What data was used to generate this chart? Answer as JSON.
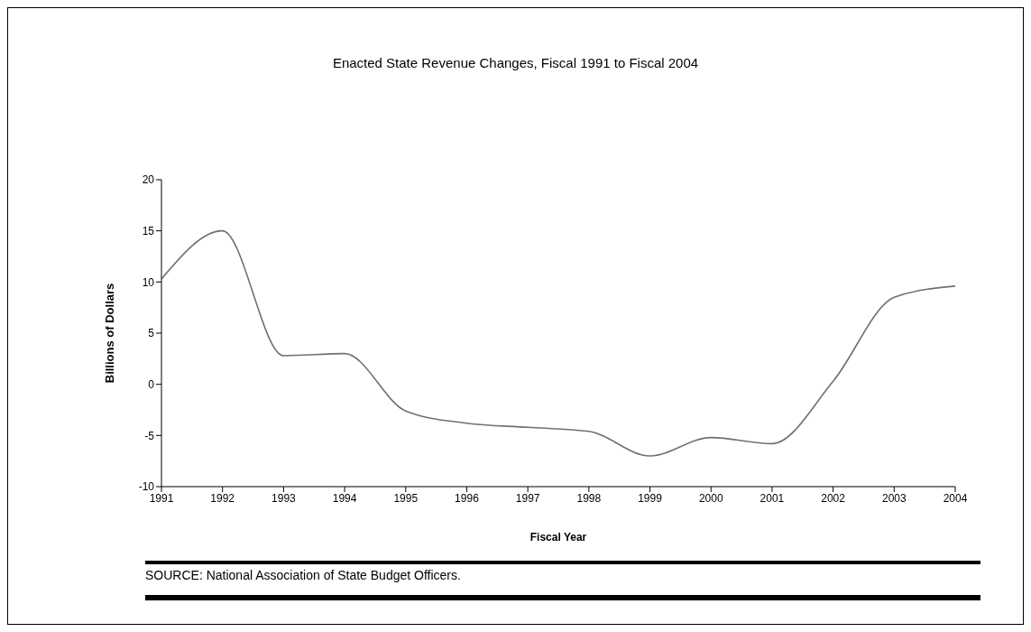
{
  "chart_data": {
    "type": "line",
    "title": "Enacted State Revenue Changes, Fiscal 1991 to Fiscal 2004",
    "xlabel": "Fiscal Year",
    "ylabel": "Billions of Dollars",
    "x": [
      1991,
      1992,
      1993,
      1994,
      1995,
      1996,
      1997,
      1998,
      1999,
      2000,
      2001,
      2002,
      2003,
      2004
    ],
    "series": [
      {
        "color": "#707070",
        "values": [
          10.3,
          15,
          2.8,
          3,
          -2.6,
          -3.8,
          -4.2,
          -4.6,
          -7,
          -5.2,
          -5.8,
          0.3,
          8.5,
          9.6
        ]
      }
    ],
    "xlim": [
      1991,
      2004
    ],
    "xticks": [
      1991,
      1992,
      1993,
      1994,
      1995,
      1996,
      1997,
      1998,
      1999,
      2000,
      2001,
      2002,
      2003,
      2004
    ],
    "ylim": [
      -10,
      20
    ],
    "yticks": [
      -10,
      -5,
      0,
      5,
      10,
      15,
      20
    ],
    "grid": false,
    "legend": false,
    "marker": "none",
    "line_style": "solid",
    "annotations": [
      "SOURCE:  National Association of State Budget Officers."
    ]
  }
}
